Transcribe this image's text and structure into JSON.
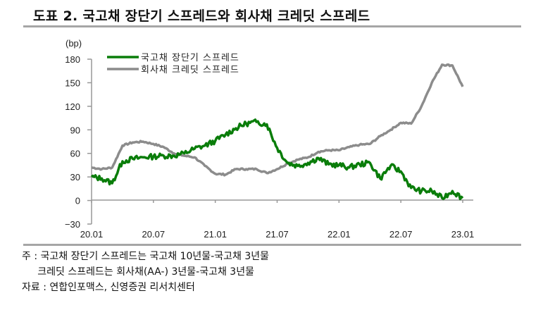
{
  "title": "도표 2. 국고채 장단기 스프레드와 회사채 크레딧 스프레드",
  "notes": {
    "line1": "주 : 국고채 장단기 스프레드는 국고채 10년물-국고채 3년물",
    "line2": "     크레딧 스프레드는 회사채(AA-) 3년물-국고채 3년물",
    "line3": "자료 : 연합인포맥스, 신영증권 리서치센터"
  },
  "colors": {
    "series_green": "#0a7d0a",
    "series_gray": "#8c8c8c",
    "axis": "#999999",
    "rule": "#a6a6a6"
  },
  "chart_data": {
    "type": "line",
    "title": "도표 2. 국고채 장단기 스프레드와 회사채 크레딧 스프레드",
    "ylabel": "(bp)",
    "xlabel": "",
    "ylim": [
      -30,
      180
    ],
    "yticks": [
      180,
      150,
      120,
      90,
      60,
      30,
      0,
      -30
    ],
    "xtick_labels": [
      "20.01",
      "20.07",
      "21.01",
      "21.07",
      "22.01",
      "22.07",
      "23.01"
    ],
    "grid": false,
    "legend_position": "top-left inside",
    "x": [
      "20.01",
      "20.02",
      "20.03",
      "20.04",
      "20.05",
      "20.06",
      "20.07",
      "20.08",
      "20.09",
      "20.10",
      "20.11",
      "20.12",
      "21.01",
      "21.02",
      "21.03",
      "21.04",
      "21.05",
      "21.06",
      "21.07",
      "21.08",
      "21.09",
      "21.10",
      "21.11",
      "21.12",
      "22.01",
      "22.02",
      "22.03",
      "22.04",
      "22.05",
      "22.06",
      "22.07",
      "22.08",
      "22.09",
      "22.10",
      "22.11",
      "22.12",
      "23.01"
    ],
    "series": [
      {
        "name": "국고채 장단기 스프레드",
        "values": [
          30,
          28,
          22,
          50,
          53,
          55,
          56,
          57,
          57,
          60,
          66,
          70,
          76,
          84,
          92,
          98,
          100,
          97,
          67,
          48,
          44,
          48,
          54,
          46,
          45,
          42,
          46,
          48,
          28,
          44,
          37,
          16,
          12,
          12,
          3,
          12,
          3
        ]
      },
      {
        "name": "회사채 크레딧 스프레드",
        "values": [
          42,
          40,
          42,
          70,
          74,
          75,
          72,
          68,
          60,
          57,
          55,
          44,
          34,
          33,
          40,
          40,
          40,
          35,
          40,
          47,
          52,
          55,
          62,
          64,
          64,
          68,
          71,
          72,
          82,
          90,
          99,
          98,
          120,
          150,
          173,
          172,
          145
        ]
      }
    ]
  },
  "axis_labels": {
    "unit": "(bp)",
    "y": [
      "180",
      "150",
      "120",
      "90",
      "60",
      "30",
      "0",
      "−30"
    ],
    "x": [
      "20.01",
      "20.07",
      "21.01",
      "21.07",
      "22.01",
      "22.07",
      "23.01"
    ]
  },
  "legend": [
    {
      "label": "국고채 장단기 스프레드",
      "color": "#0a7d0a"
    },
    {
      "label": "회사채 크레딧 스프레드",
      "color": "#8c8c8c"
    }
  ]
}
